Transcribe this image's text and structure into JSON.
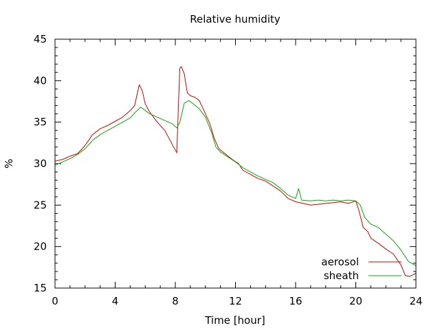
{
  "chart_data": {
    "type": "line",
    "title": "Relative humidity",
    "xlabel": "Time [hour]",
    "ylabel": "%",
    "xlim": [
      0,
      24
    ],
    "ylim": [
      15,
      45
    ],
    "xticks": [
      0,
      4,
      8,
      12,
      16,
      20,
      24
    ],
    "yticks": [
      15,
      20,
      25,
      30,
      35,
      40,
      45
    ],
    "grid": false,
    "legend_position": "bottom-right",
    "series": [
      {
        "name": "aerosol",
        "color": "#cc0000",
        "points": [
          [
            0,
            30.3
          ],
          [
            0.5,
            30.5
          ],
          [
            1.0,
            30.9
          ],
          [
            1.5,
            31.2
          ],
          [
            2.0,
            32.2
          ],
          [
            2.5,
            33.5
          ],
          [
            3.0,
            34.2
          ],
          [
            3.5,
            34.6
          ],
          [
            4.0,
            35.1
          ],
          [
            4.5,
            35.6
          ],
          [
            5.0,
            36.4
          ],
          [
            5.3,
            37.0
          ],
          [
            5.6,
            39.5
          ],
          [
            5.8,
            38.8
          ],
          [
            6.0,
            37.2
          ],
          [
            6.3,
            36.2
          ],
          [
            6.8,
            35.0
          ],
          [
            7.3,
            34.0
          ],
          [
            7.8,
            32.3
          ],
          [
            8.1,
            31.3
          ],
          [
            8.2,
            36.8
          ],
          [
            8.3,
            41.5
          ],
          [
            8.4,
            41.7
          ],
          [
            8.6,
            40.8
          ],
          [
            8.8,
            38.5
          ],
          [
            9.0,
            38.2
          ],
          [
            9.3,
            38.0
          ],
          [
            9.6,
            37.6
          ],
          [
            10.0,
            36.0
          ],
          [
            10.3,
            34.8
          ],
          [
            10.6,
            33.0
          ],
          [
            10.9,
            31.8
          ],
          [
            11.3,
            31.2
          ],
          [
            11.8,
            30.5
          ],
          [
            12.2,
            30.0
          ],
          [
            12.5,
            29.2
          ],
          [
            13.0,
            28.7
          ],
          [
            13.5,
            28.2
          ],
          [
            14.0,
            27.9
          ],
          [
            14.5,
            27.3
          ],
          [
            15.0,
            26.7
          ],
          [
            15.5,
            25.8
          ],
          [
            16.0,
            25.4
          ],
          [
            16.5,
            25.2
          ],
          [
            17.0,
            25.0
          ],
          [
            17.5,
            25.1
          ],
          [
            18.0,
            25.2
          ],
          [
            18.5,
            25.3
          ],
          [
            19.0,
            25.4
          ],
          [
            19.5,
            25.2
          ],
          [
            20.0,
            25.5
          ],
          [
            20.2,
            24.4
          ],
          [
            20.5,
            22.3
          ],
          [
            20.8,
            21.8
          ],
          [
            21.0,
            21.0
          ],
          [
            21.5,
            20.4
          ],
          [
            22.0,
            19.7
          ],
          [
            22.5,
            19.1
          ],
          [
            23.0,
            17.8
          ],
          [
            23.3,
            16.5
          ],
          [
            23.6,
            16.4
          ],
          [
            24.0,
            16.8
          ]
        ]
      },
      {
        "name": "sheath",
        "color": "#00aa00",
        "points": [
          [
            0,
            29.8
          ],
          [
            0.5,
            30.2
          ],
          [
            1.0,
            30.6
          ],
          [
            1.5,
            31.1
          ],
          [
            2.0,
            31.8
          ],
          [
            2.5,
            32.8
          ],
          [
            3.0,
            33.5
          ],
          [
            3.5,
            34.0
          ],
          [
            4.0,
            34.5
          ],
          [
            4.5,
            35.0
          ],
          [
            5.0,
            35.5
          ],
          [
            5.4,
            36.3
          ],
          [
            5.7,
            36.8
          ],
          [
            6.0,
            36.4
          ],
          [
            6.3,
            36.0
          ],
          [
            6.8,
            35.6
          ],
          [
            7.3,
            35.2
          ],
          [
            7.8,
            34.8
          ],
          [
            8.1,
            34.3
          ],
          [
            8.3,
            35.0
          ],
          [
            8.6,
            37.3
          ],
          [
            8.9,
            37.6
          ],
          [
            9.2,
            37.2
          ],
          [
            9.6,
            36.6
          ],
          [
            10.0,
            35.6
          ],
          [
            10.4,
            33.8
          ],
          [
            10.7,
            32.0
          ],
          [
            11.0,
            31.4
          ],
          [
            11.5,
            30.8
          ],
          [
            12.0,
            30.2
          ],
          [
            12.5,
            29.5
          ],
          [
            13.0,
            29.0
          ],
          [
            13.5,
            28.5
          ],
          [
            14.0,
            28.1
          ],
          [
            14.5,
            27.7
          ],
          [
            15.0,
            27.0
          ],
          [
            15.5,
            26.2
          ],
          [
            16.0,
            25.8
          ],
          [
            16.2,
            27.0
          ],
          [
            16.4,
            25.6
          ],
          [
            17.0,
            25.5
          ],
          [
            17.5,
            25.6
          ],
          [
            18.0,
            25.5
          ],
          [
            18.5,
            25.6
          ],
          [
            19.0,
            25.5
          ],
          [
            19.5,
            25.6
          ],
          [
            20.0,
            25.5
          ],
          [
            20.3,
            25.0
          ],
          [
            20.6,
            23.5
          ],
          [
            21.0,
            22.7
          ],
          [
            21.5,
            22.3
          ],
          [
            22.0,
            21.5
          ],
          [
            22.5,
            20.7
          ],
          [
            23.0,
            19.6
          ],
          [
            23.5,
            18.2
          ],
          [
            24.0,
            17.7
          ]
        ]
      }
    ]
  }
}
